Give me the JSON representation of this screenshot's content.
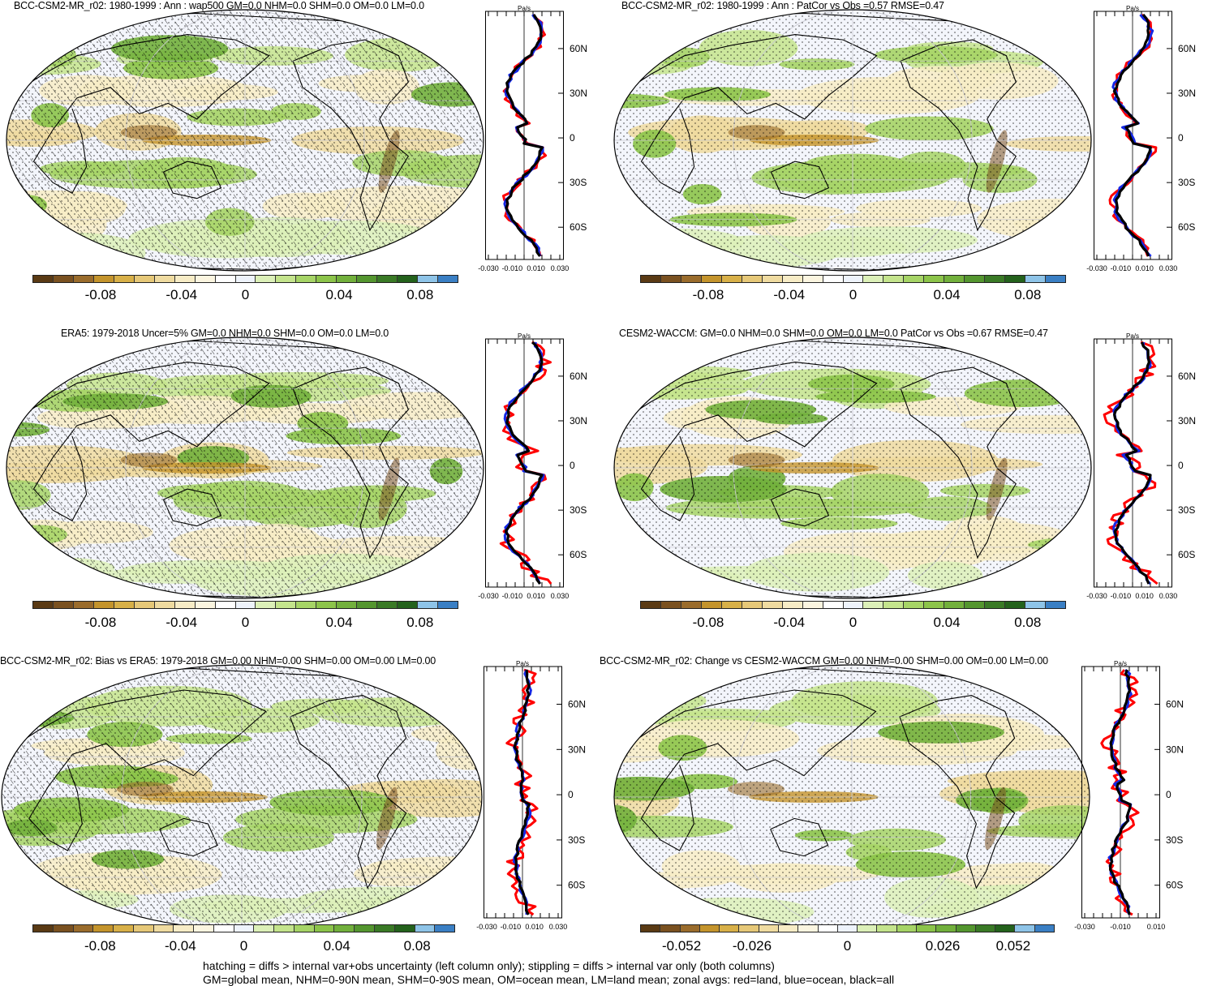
{
  "colorbar": {
    "colors": [
      "#5a3a14",
      "#7a5120",
      "#9a6c2c",
      "#c4942c",
      "#d8b048",
      "#e6c878",
      "#efdba0",
      "#f7ecc6",
      "#fbf5e0",
      "#ffffff",
      "#eef3fb",
      "#dcf0b8",
      "#c4e48c",
      "#a6d466",
      "#8cc44a",
      "#72b03c",
      "#54962f",
      "#3a7a26",
      "#24621c",
      "#8ec4e8",
      "#3a7fc4"
    ]
  },
  "zonal": {
    "units": "Pa/s",
    "lat_labels": [
      "60N",
      "30N",
      "0",
      "30S",
      "60S"
    ],
    "x_labels_a": [
      "-0.030",
      "-0.010",
      "0.010",
      "0.030"
    ],
    "x_labels_b": [
      "-0.030",
      "-0.010",
      "0.010"
    ],
    "legend_colors": {
      "land": "#ff0000",
      "ocean": "#1428e6",
      "all": "#000000"
    }
  },
  "panels": [
    {
      "id": "p1",
      "title": "BCC-CSM2-MR_r02: 1980-1999 : Ann : wap500 GM=0.0 NHM=0.0 SHM=0.0 OM=0.0 LM=0.0",
      "cb_labels": [
        "-0.08",
        "-0.04",
        "0",
        "0.04",
        "0.08"
      ],
      "xlabels": "a"
    },
    {
      "id": "p2",
      "title": "BCC-CSM2-MR_r02: 1980-1999 : Ann : PatCor vs Obs =0.57 RMSE=0.47",
      "cb_labels": [
        "-0.08",
        "-0.04",
        "0",
        "0.04",
        "0.08"
      ],
      "xlabels": "a"
    },
    {
      "id": "p3",
      "title": "ERA5: 1979-2018 Uncer=5% GM=0.0 NHM=0.0 SHM=0.0 OM=0.0 LM=0.0",
      "cb_labels": [
        "-0.08",
        "-0.04",
        "0",
        "0.04",
        "0.08"
      ],
      "xlabels": "a"
    },
    {
      "id": "p4",
      "title": "CESM2-WACCM: GM=0.0 NHM=0.0 SHM=0.0 OM=0.0 LM=0.0 PatCor vs Obs =0.67 RMSE=0.47",
      "cb_labels": [
        "-0.08",
        "-0.04",
        "0",
        "0.04",
        "0.08"
      ],
      "xlabels": "a"
    },
    {
      "id": "p5",
      "title": "BCC-CSM2-MR_r02: Bias vs ERA5: 1979-2018 GM=0.00 NHM=0.00 SHM=0.00 OM=0.00 LM=0.00",
      "cb_labels": [
        "-0.08",
        "-0.04",
        "0",
        "0.04",
        "0.08"
      ],
      "xlabels": "a"
    },
    {
      "id": "p6",
      "title": "BCC-CSM2-MR_r02: Change vs CESM2-WACCM GM=0.00 NHM=0.00 SHM=0.00 OM=0.00 LM=0.00",
      "cb_labels": [
        "-0.052",
        "-0.026",
        "0",
        "0.026",
        "0.052"
      ],
      "xlabels": "b"
    }
  ],
  "footer": {
    "line1": "hatching = diffs > internal var+obs uncertainty (left column only); stippling = diffs > internal var only (both columns)",
    "line2": "GM=global mean, NHM=0-90N mean, SHM=0-90S mean, OM=ocean mean, LM=land mean; zonal avgs: red=land, blue=ocean, black=all"
  }
}
